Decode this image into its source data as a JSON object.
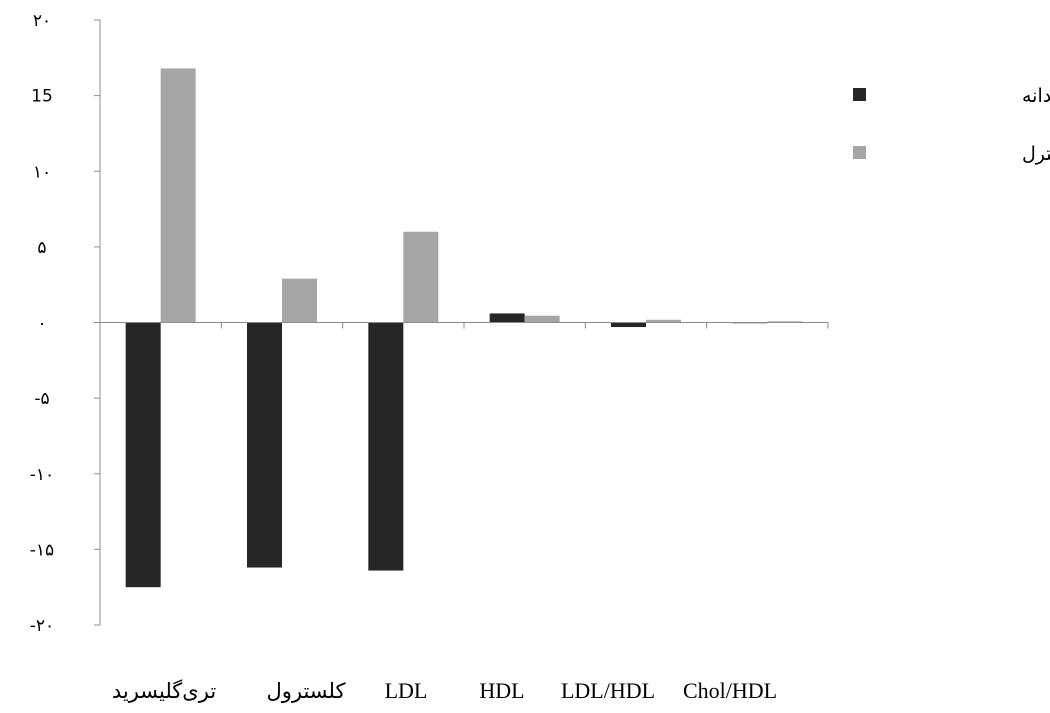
{
  "chart_data": {
    "type": "bar",
    "categories": [
      "تری‌گلیسرید",
      "کلسترول",
      "LDL",
      "HDL",
      "LDL/HDL",
      "Chol/HDL"
    ],
    "series": [
      {
        "name": "گروه سیاه دانه",
        "color": "#262626",
        "values": [
          -17.5,
          -16.2,
          -16.4,
          0.6,
          -0.3,
          -0.05
        ]
      },
      {
        "name": "گروه کنترل",
        "color": "#a6a6a6",
        "values": [
          16.8,
          2.9,
          6.0,
          0.45,
          0.18,
          0.08
        ]
      }
    ],
    "y_ticks": [
      20,
      15,
      10,
      5,
      0,
      -5,
      -10,
      -15,
      -20
    ],
    "y_tick_labels": [
      "۲۰",
      "15",
      "۱۰",
      "۵",
      "۰",
      "-۵",
      "-۱۰",
      "-۱۵",
      "-۲۰"
    ],
    "ylim": [
      -20,
      20
    ],
    "grid": false,
    "legend_position": "right"
  }
}
